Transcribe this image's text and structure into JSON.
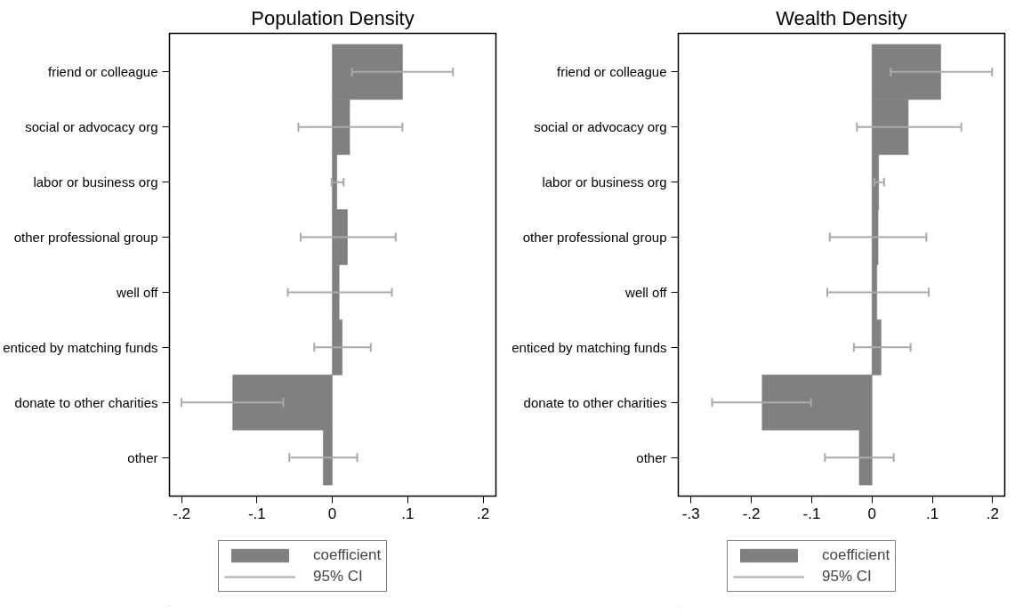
{
  "chart_data": [
    {
      "type": "bar",
      "orientation": "horizontal",
      "title": "Population Density",
      "categories": [
        "friend or colleague",
        "social or advocacy org",
        "labor or business org",
        "other professional group",
        "well off",
        "enticed by matching funds",
        "donate to other charities",
        "other"
      ],
      "series": [
        {
          "name": "coefficient",
          "color": "#808080",
          "values": [
            0.093,
            0.023,
            0.006,
            0.02,
            0.009,
            0.013,
            -0.132,
            -0.012
          ],
          "errors": [
            [
              0.026,
              0.16
            ],
            [
              -0.045,
              0.093
            ],
            [
              -0.001,
              0.015
            ],
            [
              -0.042,
              0.084
            ],
            [
              -0.059,
              0.079
            ],
            [
              -0.024,
              0.051
            ],
            [
              -0.2,
              -0.065
            ],
            [
              -0.057,
              0.033
            ]
          ]
        }
      ],
      "annotations": [
        "95% CI"
      ],
      "xlim": [
        -0.216,
        0.217
      ],
      "xticks": [
        {
          "value": -0.2,
          "label": "-.2"
        },
        {
          "value": -0.1,
          "label": "-.1"
        },
        {
          "value": 0,
          "label": "0"
        },
        {
          "value": 0.1,
          "label": ".1"
        },
        {
          "value": 0.2,
          "label": ".2"
        }
      ],
      "grid": false,
      "legend": "bottom"
    },
    {
      "type": "bar",
      "orientation": "horizontal",
      "title": "Wealth Density",
      "categories": [
        "friend or colleague",
        "social or advocacy org",
        "labor or business org",
        "other professional group",
        "well off",
        "enticed by matching funds",
        "donate to other charities",
        "other"
      ],
      "series": [
        {
          "name": "coefficient",
          "color": "#808080",
          "values": [
            0.114,
            0.06,
            0.011,
            0.01,
            0.008,
            0.015,
            -0.182,
            -0.021
          ],
          "errors": [
            [
              0.031,
              0.199
            ],
            [
              -0.025,
              0.148
            ],
            [
              0.004,
              0.02
            ],
            [
              -0.07,
              0.09
            ],
            [
              -0.074,
              0.094
            ],
            [
              -0.03,
              0.064
            ],
            [
              -0.265,
              -0.101
            ],
            [
              -0.078,
              0.036
            ]
          ]
        }
      ],
      "annotations": [
        "95% CI"
      ],
      "xlim": [
        -0.321,
        0.22
      ],
      "xticks": [
        {
          "value": -0.3,
          "label": "-.3"
        },
        {
          "value": -0.2,
          "label": "-.2"
        },
        {
          "value": -0.1,
          "label": "-.1"
        },
        {
          "value": 0,
          "label": "0"
        },
        {
          "value": 0.1,
          "label": ".1"
        },
        {
          "value": 0.2,
          "label": ".2"
        }
      ],
      "grid": false,
      "legend": "bottom"
    }
  ]
}
